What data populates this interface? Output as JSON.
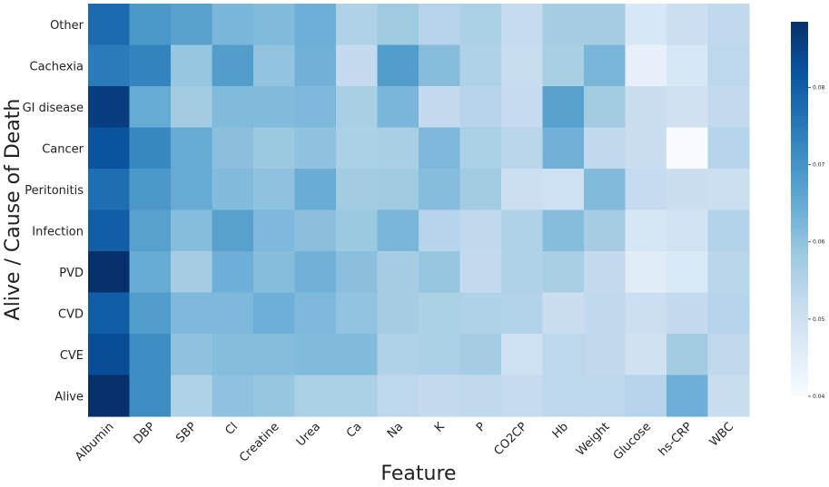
{
  "chart_data": {
    "type": "heatmap",
    "xlabel": "Feature",
    "ylabel": "Alive / Cause of Death",
    "columns": [
      "Albumin",
      "DBP",
      "SBP",
      "Cl",
      "Creatine",
      "Urea",
      "Ca",
      "Na",
      "K",
      "P",
      "CO2CP",
      "Hb",
      "Weight",
      "Glucose",
      "hs-CRP",
      "WBC"
    ],
    "rows": [
      "Other",
      "Cachexia",
      "GI disease",
      "Cancer",
      "Peritonitis",
      "Infection",
      "PVD",
      "CVD",
      "CVE",
      "Alive"
    ],
    "values": [
      [
        0.0775,
        0.069,
        0.067,
        0.0625,
        0.0615,
        0.064,
        0.0555,
        0.058,
        0.0545,
        0.056,
        0.052,
        0.057,
        0.057,
        0.0475,
        0.0505,
        0.053
      ],
      [
        0.0745,
        0.073,
        0.059,
        0.068,
        0.0595,
        0.0635,
        0.0525,
        0.068,
        0.061,
        0.0555,
        0.0515,
        0.0565,
        0.0625,
        0.044,
        0.0475,
        0.0535
      ],
      [
        0.086,
        0.065,
        0.0575,
        0.0615,
        0.0615,
        0.062,
        0.0565,
        0.0625,
        0.0525,
        0.0545,
        0.052,
        0.067,
        0.0575,
        0.051,
        0.0495,
        0.0525
      ],
      [
        0.082,
        0.072,
        0.065,
        0.0605,
        0.0585,
        0.06,
        0.056,
        0.0565,
        0.062,
        0.056,
        0.054,
        0.0635,
        0.053,
        0.051,
        0.04,
        0.0545
      ],
      [
        0.077,
        0.069,
        0.065,
        0.0615,
        0.06,
        0.0645,
        0.0575,
        0.058,
        0.061,
        0.0575,
        0.0505,
        0.05,
        0.0615,
        0.052,
        0.051,
        0.0505
      ],
      [
        0.08,
        0.067,
        0.061,
        0.067,
        0.062,
        0.0605,
        0.0585,
        0.0625,
        0.0545,
        0.053,
        0.0555,
        0.061,
        0.057,
        0.048,
        0.049,
        0.055
      ],
      [
        0.09,
        0.065,
        0.057,
        0.064,
        0.061,
        0.0635,
        0.0605,
        0.057,
        0.059,
        0.0525,
        0.0555,
        0.0565,
        0.0525,
        0.0455,
        0.047,
        0.054
      ],
      [
        0.08,
        0.068,
        0.062,
        0.062,
        0.064,
        0.062,
        0.0595,
        0.057,
        0.056,
        0.0555,
        0.055,
        0.051,
        0.053,
        0.0505,
        0.0525,
        0.0545
      ],
      [
        0.083,
        0.071,
        0.06,
        0.061,
        0.061,
        0.0615,
        0.0615,
        0.0555,
        0.056,
        0.057,
        0.05,
        0.0535,
        0.053,
        0.0495,
        0.0575,
        0.053
      ],
      [
        0.09,
        0.071,
        0.0555,
        0.06,
        0.059,
        0.056,
        0.056,
        0.0535,
        0.0525,
        0.053,
        0.052,
        0.0535,
        0.0535,
        0.0545,
        0.064,
        0.0515
      ]
    ],
    "colorbar": {
      "ticks": [
        0.04,
        0.05,
        0.06,
        0.07,
        0.08
      ],
      "tick_labels": [
        "0.04",
        "0.05",
        "0.06",
        "0.07",
        "0.08"
      ],
      "vmin": 0.04,
      "vmax": 0.0885
    },
    "colormap": [
      "#f7fbff",
      "#deebf7",
      "#c6dbef",
      "#9ecae1",
      "#6baed6",
      "#4292c6",
      "#2171b5",
      "#08519c",
      "#08306b"
    ],
    "grid": false
  }
}
